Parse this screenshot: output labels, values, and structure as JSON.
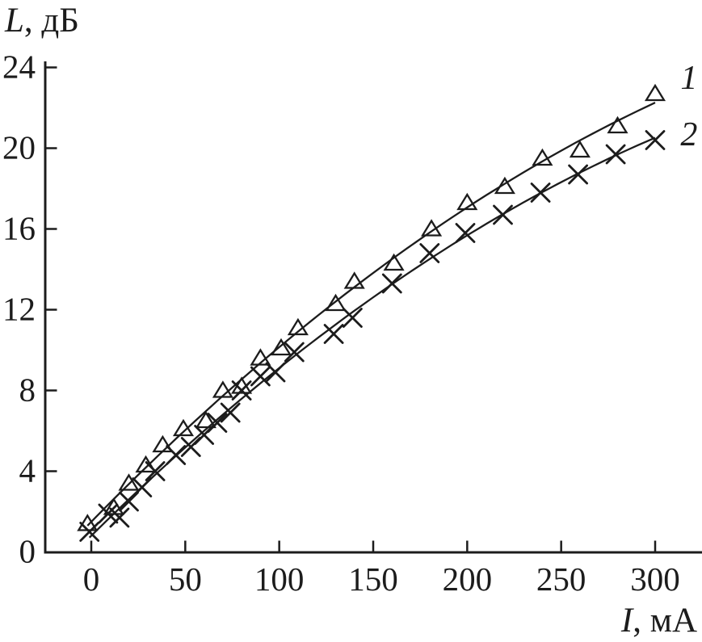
{
  "figure": {
    "background": "#ffffff",
    "ink_color": "#1c1c1c",
    "y_axis_title": {
      "var": "L",
      "rest": ", дБ"
    },
    "x_axis_title": {
      "var": "I",
      "rest": ", мА"
    }
  },
  "chart_data": {
    "type": "scatter",
    "title": "",
    "xlabel": "I, мА",
    "ylabel": "L, дБ",
    "xlim": [
      -25,
      325
    ],
    "ylim": [
      0,
      24.2
    ],
    "x_ticks": [
      0,
      50,
      100,
      150,
      200,
      250,
      300
    ],
    "y_ticks": [
      0,
      4,
      8,
      12,
      16,
      20,
      24
    ],
    "grid": false,
    "legend_position": "labels at right end of each curve",
    "series": [
      {
        "name": "series-1",
        "label": "1",
        "marker": "triangle-up-open",
        "line": "smooth-fit",
        "color": "#1c1c1c",
        "label_at": [
          318,
          23.5
        ],
        "points": [
          [
            -2,
            1.4
          ],
          [
            12,
            2.2
          ],
          [
            20,
            3.4
          ],
          [
            29,
            4.3
          ],
          [
            38,
            5.3
          ],
          [
            49,
            6.1
          ],
          [
            61,
            6.5
          ],
          [
            70,
            8.0
          ],
          [
            80,
            8.2
          ],
          [
            90,
            9.6
          ],
          [
            101,
            10.1
          ],
          [
            110,
            11.1
          ],
          [
            130,
            12.3
          ],
          [
            140,
            13.4
          ],
          [
            161,
            14.3
          ],
          [
            181,
            16.0
          ],
          [
            200,
            17.3
          ],
          [
            220,
            18.1
          ],
          [
            240,
            19.5
          ],
          [
            260,
            19.9
          ],
          [
            280,
            21.1
          ],
          [
            300,
            22.7
          ]
        ]
      },
      {
        "name": "series-2",
        "label": "2",
        "marker": "x-cross",
        "line": "smooth-fit",
        "color": "#1c1c1c",
        "label_at": [
          318,
          20.7
        ],
        "points": [
          [
            -1,
            1.0
          ],
          [
            9,
            1.9
          ],
          [
            15,
            1.7
          ],
          [
            20,
            2.5
          ],
          [
            27,
            3.2
          ],
          [
            34,
            4.0
          ],
          [
            45,
            4.8
          ],
          [
            53,
            5.2
          ],
          [
            60,
            5.8
          ],
          [
            67,
            6.4
          ],
          [
            74,
            6.9
          ],
          [
            80,
            8.0
          ],
          [
            90,
            8.7
          ],
          [
            98,
            8.9
          ],
          [
            108,
            9.9
          ],
          [
            129,
            10.8
          ],
          [
            139,
            11.6
          ],
          [
            160,
            13.3
          ],
          [
            180,
            14.8
          ],
          [
            199,
            15.8
          ],
          [
            219,
            16.7
          ],
          [
            239,
            17.8
          ],
          [
            259,
            18.7
          ],
          [
            279,
            19.7
          ],
          [
            300,
            20.4
          ]
        ]
      }
    ]
  }
}
